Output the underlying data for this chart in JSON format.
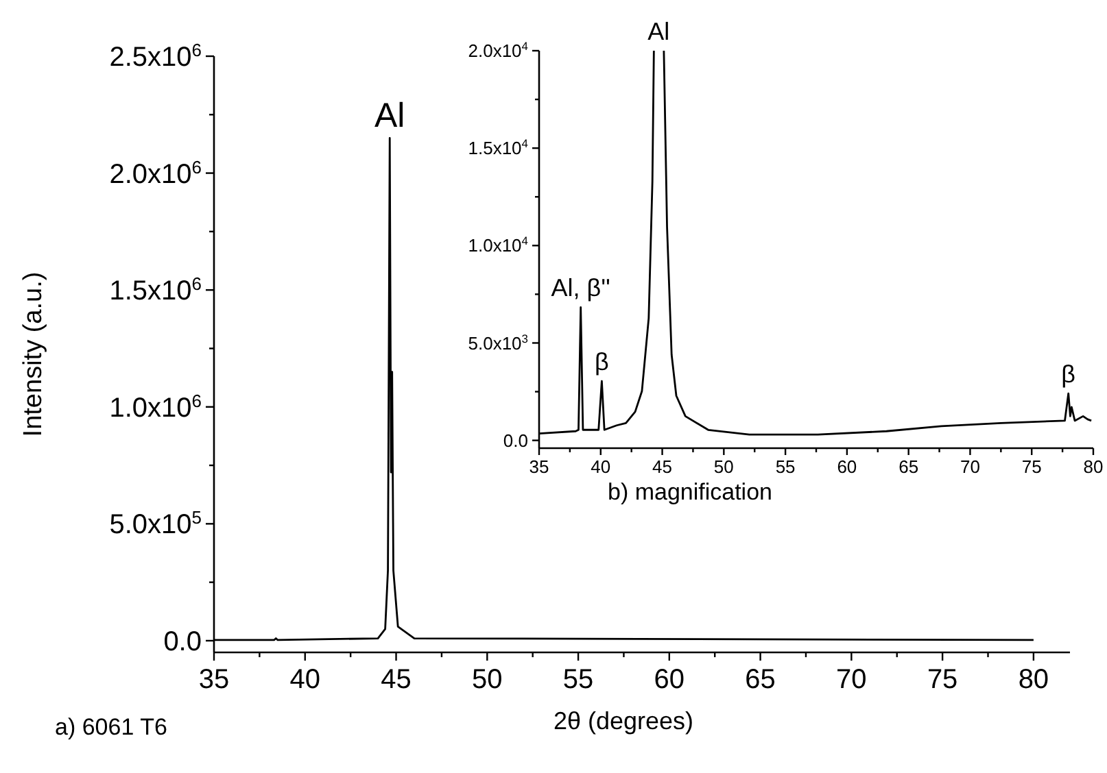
{
  "chart_data": [
    {
      "type": "line",
      "xlabel": "2θ (degrees)",
      "ylabel": "Intensity (a.u.)",
      "x": [
        35,
        38.3,
        38.4,
        38.5,
        44.0,
        44.4,
        44.55,
        44.65,
        44.72,
        44.78,
        44.85,
        45.1,
        46,
        80
      ],
      "series": [
        {
          "color": "#000000",
          "values": [
            3000,
            3000,
            10000,
            3000,
            10000,
            50000,
            300000,
            2150000,
            720000,
            1150000,
            300000,
            60000,
            10000,
            3000
          ]
        }
      ],
      "xlim": [
        35,
        82
      ],
      "ylim": [
        -50000,
        2500000
      ],
      "xticks": [
        35,
        {
          "value": 37.5,
          "label": null
        },
        40,
        {
          "value": 42.5,
          "label": null
        },
        45,
        {
          "value": 47.5,
          "label": null
        },
        50,
        {
          "value": 52.5,
          "label": null
        },
        55,
        {
          "value": 57.5,
          "label": null
        },
        60,
        {
          "value": 62.5,
          "label": null
        },
        65,
        {
          "value": 67.5,
          "label": null
        },
        70,
        {
          "value": 72.5,
          "label": null
        },
        75,
        {
          "value": 77.5,
          "label": null
        },
        80
      ],
      "yticks": [
        {
          "value": 0,
          "label": "0.0"
        },
        {
          "value": 250000,
          "label": null
        },
        {
          "value": 500000,
          "label": "5.0x10$^{5}$"
        },
        {
          "value": 750000,
          "label": null
        },
        {
          "value": 1000000,
          "label": "1.0x10$^{6}$"
        },
        {
          "value": 1250000,
          "label": null
        },
        {
          "value": 1500000,
          "label": "1.5x10$^{6}$"
        },
        {
          "value": 1750000,
          "label": null
        },
        {
          "value": 2000000,
          "label": "2.0x10$^{6}$"
        },
        {
          "value": 2250000,
          "label": null
        },
        {
          "value": 2500000,
          "label": "2.5x10$^{6}$"
        }
      ],
      "grid": false,
      "marker": "none",
      "line_style": "solid",
      "annotations": [
        {
          "text": "Al",
          "x": 44.65,
          "y": 2150000
        },
        "a) 6061 T6"
      ]
    },
    {
      "type": "line",
      "xlabel": "b) magnification",
      "x": [
        35,
        37.97,
        38.2,
        38.38,
        38.56,
        39.83,
        40.09,
        40.3,
        41.3,
        42.05,
        42.8,
        43.35,
        43.9,
        44.2,
        44.32,
        44.7,
        45.13,
        45.39,
        45.76,
        46.14,
        46.88,
        48.73,
        52.07,
        57.64,
        63.2,
        67.66,
        72.5,
        77.69,
        77.98,
        78.13,
        78.24,
        78.5,
        79.17,
        79.54,
        79.84
      ],
      "series": [
        {
          "color": "#000000",
          "values": [
            350,
            470,
            540,
            6830,
            540,
            540,
            3040,
            540,
            770,
            890,
            1470,
            2530,
            6270,
            13290,
            20000,
            null,
            20000,
            10950,
            4400,
            2290,
            1240,
            540,
            300,
            300,
            470,
            730,
            890,
            1010,
            2410,
            1240,
            1710,
            1010,
            1240,
            1080,
            1010
          ]
        }
      ],
      "xlim": [
        35,
        80
      ],
      "ylim": [
        -400,
        20000
      ],
      "xticks": [
        35,
        {
          "value": 37.5,
          "label": null
        },
        40,
        {
          "value": 42.5,
          "label": null
        },
        45,
        {
          "value": 47.5,
          "label": null
        },
        50,
        {
          "value": 52.5,
          "label": null
        },
        55,
        {
          "value": 57.5,
          "label": null
        },
        60,
        {
          "value": 62.5,
          "label": null
        },
        65,
        {
          "value": 67.5,
          "label": null
        },
        70,
        {
          "value": 72.5,
          "label": null
        },
        75,
        {
          "value": 77.5,
          "label": null
        },
        80
      ],
      "yticks": [
        {
          "value": 0,
          "label": "0.0"
        },
        {
          "value": 2500,
          "label": null
        },
        {
          "value": 5000,
          "label": "5.0x10$^{3}$"
        },
        {
          "value": 7500,
          "label": null
        },
        {
          "value": 10000,
          "label": "1.0x10$^{4}$"
        },
        {
          "value": 12500,
          "label": null
        },
        {
          "value": 15000,
          "label": "1.5x10$^{4}$"
        },
        {
          "value": 17500,
          "label": null
        },
        {
          "value": 20000,
          "label": "2.0x10$^{4}$"
        }
      ],
      "grid": false,
      "marker": "none",
      "line_style": "solid",
      "annotations": [
        {
          "text": "Al, β''",
          "x": 38.38,
          "y": 6830
        },
        {
          "text": "β",
          "x": 40.09,
          "y": 3040
        },
        {
          "text": "Al",
          "x": 44.7,
          "y": 20000
        },
        {
          "text": "β",
          "x": 77.98,
          "y": 2410
        }
      ]
    }
  ]
}
